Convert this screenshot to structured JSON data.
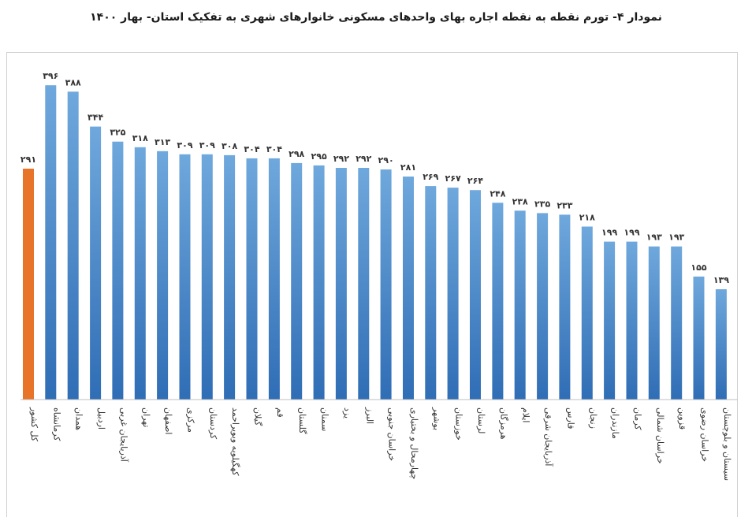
{
  "title": "نمودار ۴- تورم نقطه به نقطه اجاره بهای واحدهای مسکونی خانوارهای شهری به تفکیک استان- بهار ۱۴۰۰",
  "colors": {
    "highlight": "#E8742A",
    "bar_top": "#6FA8DC",
    "bar_bottom": "#2F6DB5"
  },
  "chart_data": {
    "type": "bar",
    "title": "نمودار ۴- تورم نقطه به نقطه اجاره بهای واحدهای مسکونی خانوارهای شهری به تفکیک استان- بهار ۱۴۰۰",
    "xlabel": "",
    "ylabel": "",
    "ylim": [
      0,
      430
    ],
    "grid": false,
    "legend": "none",
    "highlight_index": 0,
    "categories": [
      "کل کشور",
      "کرمانشاه",
      "همدان",
      "اردبیل",
      "آذربایجان غربی",
      "تهران",
      "اصفهان",
      "مرکزی",
      "کردستان",
      "کهگیلویه وبویراحمد",
      "گیلان",
      "قم",
      "گلستان",
      "سمنان",
      "یزد",
      "البرز",
      "خراسان جنوبی",
      "چهارمحال و بختیاری",
      "بوشهر",
      "خوزستان",
      "لرستان",
      "هرمزگان",
      "ایلام",
      "آذربایجان شرقی",
      "فارس",
      "زنجان",
      "مازندران",
      "کرمان",
      "خراسان شمالی",
      "قزوین",
      "خراسان رضوی",
      "سیستان و بلوچستان"
    ],
    "values": [
      291,
      396,
      388,
      344,
      325,
      318,
      313,
      309,
      309,
      308,
      304,
      304,
      298,
      295,
      292,
      292,
      290,
      281,
      269,
      267,
      264,
      248,
      238,
      235,
      233,
      218,
      199,
      199,
      193,
      193,
      155,
      139
    ],
    "value_labels": [
      "۲۹۱",
      "۳۹۶",
      "۳۸۸",
      "۳۴۴",
      "۳۲۵",
      "۳۱۸",
      "۳۱۳",
      "۳۰۹",
      "۳۰۹",
      "۳۰۸",
      "۳۰۴",
      "۳۰۴",
      "۲۹۸",
      "۲۹۵",
      "۲۹۲",
      "۲۹۲",
      "۲۹۰",
      "۲۸۱",
      "۲۶۹",
      "۲۶۷",
      "۲۶۴",
      "۲۴۸",
      "۲۳۸",
      "۲۳۵",
      "۲۳۳",
      "۲۱۸",
      "۱۹۹",
      "۱۹۹",
      "۱۹۳",
      "۱۹۳",
      "۱۵۵",
      "۱۳۹"
    ]
  }
}
